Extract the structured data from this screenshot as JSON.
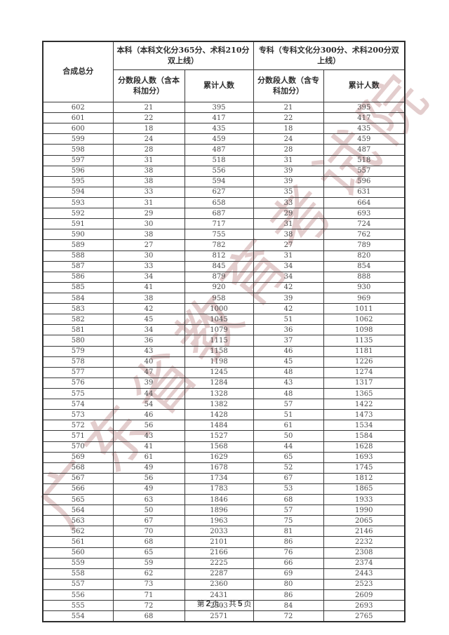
{
  "watermark": {
    "text": "广东省教育考试院",
    "color": "#cca4a4"
  },
  "table": {
    "composite_score_header": "合成总分",
    "benke_group_header": "本科（本科文化分365分、术科210分双上线）",
    "zhuanke_group_header": "专科（专科文化分300分、术科200分双上线）",
    "sub_headers": {
      "benke_segment": "分数段人数（含本科加分）",
      "benke_cumulative": "累计人数",
      "zhuanke_segment": "分数段人数（含专科加分）",
      "zhuanke_cumulative": "累计人数"
    },
    "rows": [
      [
        602,
        21,
        395,
        21,
        395
      ],
      [
        601,
        22,
        417,
        22,
        417
      ],
      [
        600,
        18,
        435,
        18,
        435
      ],
      [
        599,
        24,
        459,
        24,
        459
      ],
      [
        598,
        28,
        487,
        28,
        487
      ],
      [
        597,
        31,
        518,
        31,
        518
      ],
      [
        596,
        38,
        556,
        39,
        557
      ],
      [
        595,
        38,
        594,
        39,
        596
      ],
      [
        594,
        33,
        627,
        35,
        631
      ],
      [
        593,
        31,
        658,
        33,
        664
      ],
      [
        592,
        29,
        687,
        29,
        693
      ],
      [
        591,
        30,
        717,
        31,
        724
      ],
      [
        590,
        38,
        755,
        38,
        762
      ],
      [
        589,
        27,
        782,
        27,
        789
      ],
      [
        588,
        30,
        812,
        31,
        820
      ],
      [
        587,
        33,
        845,
        34,
        854
      ],
      [
        586,
        34,
        879,
        34,
        888
      ],
      [
        585,
        41,
        920,
        42,
        930
      ],
      [
        584,
        38,
        958,
        39,
        969
      ],
      [
        583,
        42,
        1000,
        42,
        1011
      ],
      [
        582,
        45,
        1045,
        51,
        1062
      ],
      [
        581,
        34,
        1079,
        36,
        1098
      ],
      [
        580,
        36,
        1115,
        37,
        1135
      ],
      [
        579,
        43,
        1158,
        46,
        1181
      ],
      [
        578,
        40,
        1198,
        45,
        1226
      ],
      [
        577,
        47,
        1245,
        48,
        1274
      ],
      [
        576,
        39,
        1284,
        43,
        1317
      ],
      [
        575,
        44,
        1328,
        48,
        1365
      ],
      [
        574,
        54,
        1382,
        57,
        1422
      ],
      [
        573,
        46,
        1428,
        51,
        1473
      ],
      [
        572,
        56,
        1484,
        61,
        1534
      ],
      [
        571,
        43,
        1527,
        50,
        1584
      ],
      [
        570,
        41,
        1568,
        44,
        1628
      ],
      [
        569,
        61,
        1629,
        65,
        1693
      ],
      [
        568,
        49,
        1678,
        52,
        1745
      ],
      [
        567,
        56,
        1734,
        67,
        1812
      ],
      [
        566,
        49,
        1783,
        53,
        1865
      ],
      [
        565,
        63,
        1846,
        68,
        1933
      ],
      [
        564,
        50,
        1896,
        57,
        1990
      ],
      [
        563,
        67,
        1963,
        75,
        2065
      ],
      [
        562,
        70,
        2033,
        81,
        2146
      ],
      [
        561,
        68,
        2101,
        86,
        2232
      ],
      [
        560,
        65,
        2166,
        76,
        2308
      ],
      [
        559,
        59,
        2225,
        66,
        2374
      ],
      [
        558,
        62,
        2287,
        69,
        2443
      ],
      [
        557,
        73,
        2360,
        80,
        2523
      ],
      [
        556,
        71,
        2431,
        86,
        2609
      ],
      [
        555,
        72,
        2503,
        84,
        2693
      ],
      [
        554,
        68,
        2571,
        72,
        2765
      ]
    ]
  },
  "footer": {
    "prefix": "第",
    "page_number": "2",
    "middle": "页，共",
    "total_pages": "5",
    "suffix": "页"
  }
}
